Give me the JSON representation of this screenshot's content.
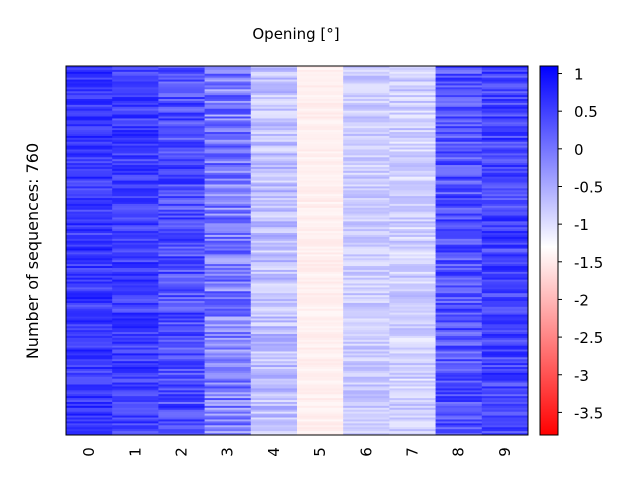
{
  "chart_data": {
    "type": "heatmap",
    "title": "Opening [°]",
    "ylabel": "Number of sequences: 760",
    "xlabel": "",
    "x_ticks": [
      "0",
      "1",
      "2",
      "3",
      "4",
      "5",
      "6",
      "7",
      "8",
      "9"
    ],
    "n_rows": 760,
    "colorbar": {
      "range": [
        -3.8,
        1.1
      ],
      "ticks": [
        "1",
        "0.5",
        "0",
        "-0.5",
        "-1",
        "-1.5",
        "-2",
        "-2.5",
        "-3",
        "-3.5"
      ],
      "tick_values": [
        1,
        0.5,
        0,
        -0.5,
        -1,
        -1.5,
        -2,
        -2.5,
        -3,
        -3.5
      ],
      "colors": {
        "low": "#ff0000",
        "mid": "#ffffff",
        "high": "#0000ff"
      },
      "mid_value": -1.35
    },
    "columns": [
      {
        "label": "0",
        "mean": 0.55,
        "spread": 0.35
      },
      {
        "label": "1",
        "mean": 0.5,
        "spread": 0.35
      },
      {
        "label": "2",
        "mean": 0.35,
        "spread": 0.45
      },
      {
        "label": "3",
        "mean": -0.1,
        "spread": 0.6
      },
      {
        "label": "4",
        "mean": -0.75,
        "spread": 0.35
      },
      {
        "label": "5",
        "mean": -1.5,
        "spread": 0.08
      },
      {
        "label": "6",
        "mean": -0.85,
        "spread": 0.25
      },
      {
        "label": "7",
        "mean": -0.9,
        "spread": 0.3
      },
      {
        "label": "8",
        "mean": 0.3,
        "spread": 0.45
      },
      {
        "label": "9",
        "mean": 0.45,
        "spread": 0.4
      }
    ],
    "grid": false
  }
}
